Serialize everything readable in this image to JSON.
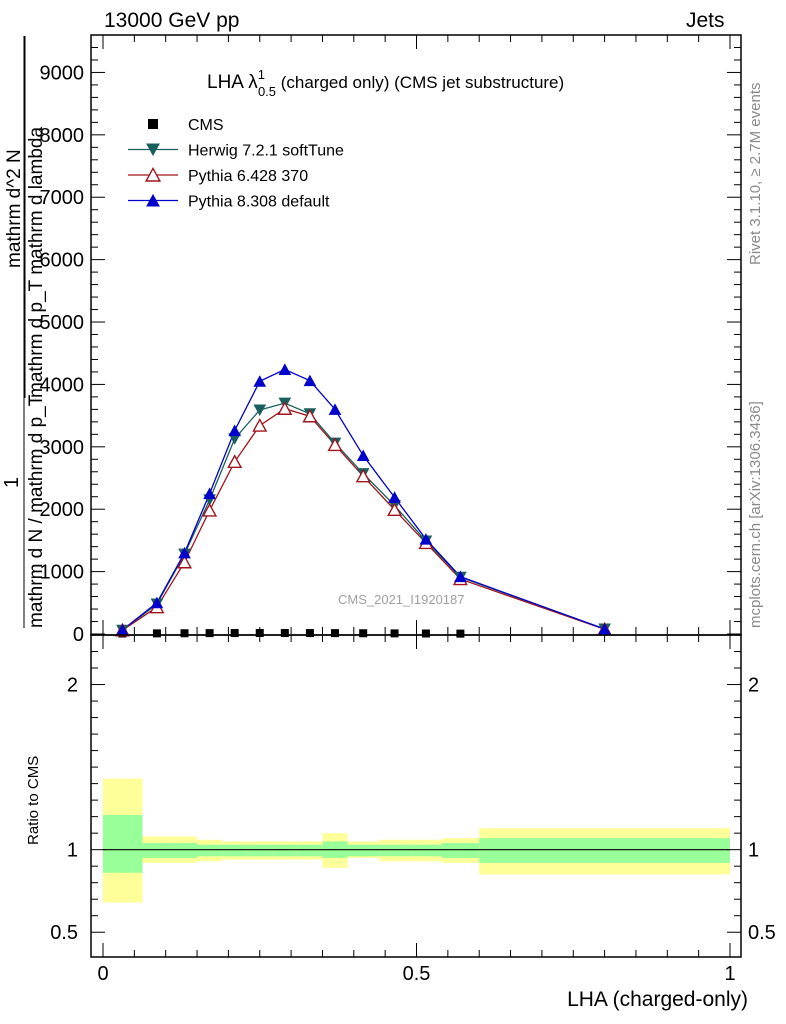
{
  "header": {
    "left": "13000 GeV pp",
    "right": "Jets"
  },
  "side_labels": {
    "rivet": "Rivet 3.1.10, ≥ 2.7M events",
    "mcplots": "mcplots.cern.ch [arXiv:1306.3436]"
  },
  "title": {
    "main": "LHA λ",
    "sup": "1",
    "sub": "0.5",
    "rest": " (charged only) (CMS jet substructure)"
  },
  "ylabel": {
    "numerator_one": "1",
    "denominator": "mathrm d N / mathrm d p_T",
    "numerator_frac": "mathrm d^2 N",
    "denominator_frac": "mathrm d p_T mathrm d lambda"
  },
  "watermark": "CMS_2021_I1920187",
  "xlabel": "LHA (charged-only)",
  "ratio_ylabel": "Ratio to CMS",
  "legend": [
    {
      "label": "CMS",
      "marker": "square",
      "color": "#000000"
    },
    {
      "label": "Herwig 7.2.1 softTune",
      "marker": "triangle-down",
      "color": "#1a5f5f"
    },
    {
      "label": "Pythia 6.428 370",
      "marker": "triangle-open",
      "color": "#a0141e"
    },
    {
      "label": "Pythia 8.308 default",
      "marker": "triangle-up",
      "color": "#0000cc"
    }
  ],
  "chart_data": [
    {
      "type": "line",
      "panel": "main",
      "xlim": [
        0,
        1
      ],
      "ylim": [
        0,
        9600
      ],
      "yticks": [
        0,
        1000,
        2000,
        3000,
        4000,
        5000,
        6000,
        7000,
        8000,
        9000
      ],
      "ytick_labels": [
        "0",
        "1000",
        "2000",
        "3000",
        "4000",
        "5000",
        "6000",
        "7000",
        "8000",
        "9000"
      ],
      "x": [
        0.031,
        0.086,
        0.13,
        0.17,
        0.21,
        0.25,
        0.29,
        0.33,
        0.37,
        0.415,
        0.465,
        0.515,
        0.57,
        0.8
      ],
      "series": [
        {
          "name": "CMS",
          "values": [
            8,
            10,
            12,
            14,
            15,
            16,
            16,
            15,
            14,
            12,
            10,
            8,
            6,
            null
          ]
        },
        {
          "name": "Herwig 7.2.1 softTune",
          "values": [
            60,
            480,
            1280,
            2150,
            3130,
            3590,
            3700,
            3530,
            3060,
            2570,
            2060,
            1490,
            910,
            80
          ]
        },
        {
          "name": "Pythia 6.428 370",
          "values": [
            60,
            430,
            1150,
            1980,
            2760,
            3340,
            3610,
            3490,
            3030,
            2530,
            1990,
            1460,
            880,
            75
          ]
        },
        {
          "name": "Pythia 8.308 default",
          "values": [
            65,
            500,
            1300,
            2250,
            3260,
            4050,
            4240,
            4060,
            3600,
            2860,
            2190,
            1520,
            920,
            80
          ]
        }
      ]
    },
    {
      "type": "area",
      "panel": "ratio",
      "xlim": [
        0,
        1
      ],
      "ylim": [
        0.35,
        2.3
      ],
      "yticks": [
        0.5,
        1,
        2
      ],
      "ytick_labels": [
        "0.5",
        "1",
        "2"
      ],
      "xticks": [
        0,
        0.5,
        1
      ],
      "xtick_labels": [
        "0",
        "0.5",
        "1"
      ],
      "bins": [
        {
          "x0": 0.0,
          "x1": 0.063,
          "yel_lo": 0.68,
          "yel_hi": 1.43,
          "grn_lo": 0.86,
          "grn_hi": 1.21
        },
        {
          "x0": 0.063,
          "x1": 0.11,
          "yel_lo": 0.92,
          "yel_hi": 1.08,
          "grn_lo": 0.95,
          "grn_hi": 1.04
        },
        {
          "x0": 0.11,
          "x1": 0.15,
          "yel_lo": 0.92,
          "yel_hi": 1.08,
          "grn_lo": 0.95,
          "grn_hi": 1.04
        },
        {
          "x0": 0.15,
          "x1": 0.19,
          "yel_lo": 0.93,
          "yel_hi": 1.06,
          "grn_lo": 0.96,
          "grn_hi": 1.03
        },
        {
          "x0": 0.19,
          "x1": 0.23,
          "yel_lo": 0.94,
          "yel_hi": 1.05,
          "grn_lo": 0.96,
          "grn_hi": 1.03
        },
        {
          "x0": 0.23,
          "x1": 0.27,
          "yel_lo": 0.94,
          "yel_hi": 1.05,
          "grn_lo": 0.96,
          "grn_hi": 1.03
        },
        {
          "x0": 0.27,
          "x1": 0.31,
          "yel_lo": 0.94,
          "yel_hi": 1.05,
          "grn_lo": 0.96,
          "grn_hi": 1.03
        },
        {
          "x0": 0.31,
          "x1": 0.35,
          "yel_lo": 0.94,
          "yel_hi": 1.05,
          "grn_lo": 0.96,
          "grn_hi": 1.03
        },
        {
          "x0": 0.35,
          "x1": 0.39,
          "yel_lo": 0.89,
          "yel_hi": 1.1,
          "grn_lo": 0.95,
          "grn_hi": 1.05
        },
        {
          "x0": 0.39,
          "x1": 0.44,
          "yel_lo": 0.95,
          "yel_hi": 1.05,
          "grn_lo": 0.96,
          "grn_hi": 1.03
        },
        {
          "x0": 0.44,
          "x1": 0.49,
          "yel_lo": 0.93,
          "yel_hi": 1.06,
          "grn_lo": 0.96,
          "grn_hi": 1.03
        },
        {
          "x0": 0.49,
          "x1": 0.54,
          "yel_lo": 0.93,
          "yel_hi": 1.06,
          "grn_lo": 0.96,
          "grn_hi": 1.03
        },
        {
          "x0": 0.54,
          "x1": 0.6,
          "yel_lo": 0.92,
          "yel_hi": 1.07,
          "grn_lo": 0.95,
          "grn_hi": 1.04
        },
        {
          "x0": 0.6,
          "x1": 1.0,
          "yel_lo": 0.85,
          "yel_hi": 1.13,
          "grn_lo": 0.92,
          "grn_hi": 1.07
        }
      ],
      "reference_line": 1
    }
  ],
  "colors": {
    "band_yellow": "#ffff99",
    "band_green": "#99ff99"
  }
}
